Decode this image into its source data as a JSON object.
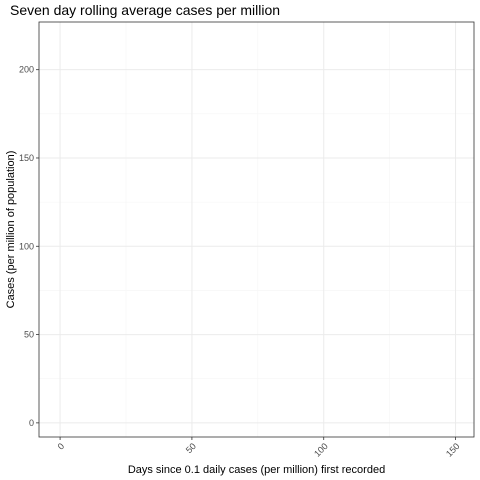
{
  "chart_data": {
    "type": "line",
    "title": "Seven day rolling average cases per million",
    "xlabel": "Days since 0.1 daily cases (per million) first recorded",
    "ylabel": "Cases (per million of population)",
    "xlim": [
      -8,
      157
    ],
    "ylim": [
      -8,
      227
    ],
    "x_ticks": [
      0,
      50,
      100,
      150
    ],
    "y_ticks": [
      0,
      50,
      100,
      150,
      200
    ],
    "x_minor_ticks": [
      25,
      75,
      125
    ],
    "y_minor_ticks": [
      25,
      75,
      125,
      175
    ],
    "grid": true,
    "series": []
  },
  "colors": {
    "panel_border": "#333333",
    "grid_major": "#ebebeb",
    "grid_minor": "#f5f5f5",
    "tick_label": "#4d4d4d"
  }
}
